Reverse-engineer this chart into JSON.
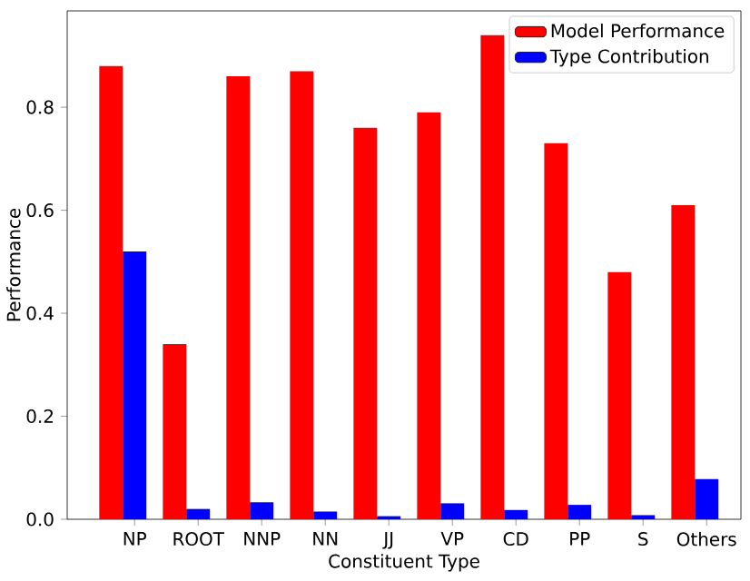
{
  "chart_data": {
    "type": "bar",
    "xlabel": "Constituent Type",
    "ylabel": "Performance",
    "categories": [
      "NP",
      "ROOT",
      "NNP",
      "NN",
      "JJ",
      "VP",
      "CD",
      "PP",
      "S",
      "Others"
    ],
    "series": [
      {
        "name": "Model Performance",
        "color": "#ff0000",
        "values": [
          0.88,
          0.34,
          0.86,
          0.87,
          0.76,
          0.79,
          0.94,
          0.73,
          0.48,
          0.61
        ]
      },
      {
        "name": "Type Contribution",
        "color": "#0000ff",
        "values": [
          0.52,
          0.02,
          0.033,
          0.015,
          0.006,
          0.031,
          0.018,
          0.028,
          0.008,
          0.078
        ]
      }
    ],
    "ylim": [
      0,
      0.987
    ],
    "yticks": [
      {
        "value": 0,
        "label": "0.0"
      },
      {
        "value": 0.2,
        "label": "0.2"
      },
      {
        "value": 0.4,
        "label": "0.4"
      },
      {
        "value": 0.6,
        "label": "0.6"
      },
      {
        "value": 0.8,
        "label": "0.8"
      }
    ],
    "grid": false,
    "legend": "top right"
  }
}
